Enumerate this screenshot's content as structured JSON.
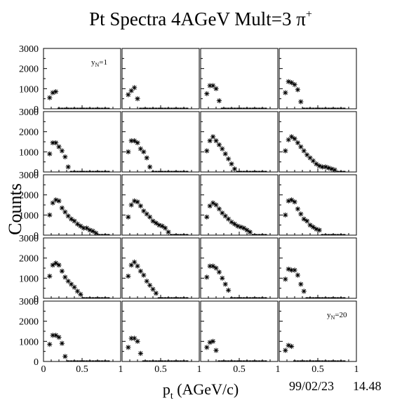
{
  "title": "Pt Spectra 4AGeV Mult=3 π",
  "title_sup": "+",
  "footer": {
    "date": "99/02/23",
    "time": "14.48"
  },
  "colors": {
    "background": "#ffffff",
    "ink": "#000000"
  },
  "chart_data": {
    "type": "scatter",
    "marker": "asterisk",
    "layout": "grid 5 rows x 4 columns",
    "ylabel": "Counts",
    "xlabel_main": "p",
    "xlabel_sub": "t",
    "xlabel_unit": " (AGeV/c)",
    "xlim": [
      0,
      1
    ],
    "ylim": [
      0,
      3000
    ],
    "y_ticks": [
      "0",
      "1000",
      "2000",
      "3000"
    ],
    "x_ticks_first": [
      "0",
      "0.5",
      "1"
    ],
    "x_ticks_other": [
      "0.5",
      "1"
    ],
    "panel_labels": [
      {
        "panel": 0,
        "main": "y",
        "sub": "N",
        "value": "=1"
      },
      {
        "panel": 19,
        "main": "y",
        "sub": "N",
        "value": "=20"
      }
    ],
    "panels": [
      [
        [
          0.08,
          550
        ],
        [
          0.12,
          800
        ],
        [
          0.16,
          850
        ]
      ],
      [
        [
          0.08,
          700
        ],
        [
          0.12,
          900
        ],
        [
          0.16,
          1050
        ],
        [
          0.2,
          500
        ]
      ],
      [
        [
          0.08,
          750
        ],
        [
          0.12,
          1150
        ],
        [
          0.16,
          1150
        ],
        [
          0.2,
          1000
        ],
        [
          0.24,
          400
        ]
      ],
      [
        [
          0.08,
          800
        ],
        [
          0.12,
          1350
        ],
        [
          0.16,
          1300
        ],
        [
          0.2,
          1200
        ],
        [
          0.24,
          950
        ],
        [
          0.28,
          350
        ]
      ],
      [
        [
          0.08,
          900
        ],
        [
          0.12,
          1450
        ],
        [
          0.16,
          1450
        ],
        [
          0.2,
          1250
        ],
        [
          0.24,
          1050
        ],
        [
          0.28,
          750
        ],
        [
          0.32,
          250
        ]
      ],
      [
        [
          0.08,
          1000
        ],
        [
          0.12,
          1550
        ],
        [
          0.16,
          1550
        ],
        [
          0.2,
          1450
        ],
        [
          0.24,
          1150
        ],
        [
          0.28,
          1000
        ],
        [
          0.32,
          700
        ],
        [
          0.36,
          250
        ]
      ],
      [
        [
          0.08,
          1050
        ],
        [
          0.12,
          1550
        ],
        [
          0.16,
          1750
        ],
        [
          0.2,
          1550
        ],
        [
          0.24,
          1350
        ],
        [
          0.28,
          1150
        ],
        [
          0.32,
          900
        ],
        [
          0.36,
          650
        ],
        [
          0.4,
          400
        ],
        [
          0.44,
          150
        ]
      ],
      [
        [
          0.08,
          1050
        ],
        [
          0.12,
          1600
        ],
        [
          0.16,
          1750
        ],
        [
          0.2,
          1650
        ],
        [
          0.24,
          1450
        ],
        [
          0.28,
          1250
        ],
        [
          0.32,
          1050
        ],
        [
          0.36,
          850
        ],
        [
          0.4,
          700
        ],
        [
          0.44,
          550
        ],
        [
          0.48,
          400
        ],
        [
          0.52,
          300
        ],
        [
          0.56,
          250
        ],
        [
          0.6,
          250
        ],
        [
          0.64,
          200
        ],
        [
          0.68,
          150
        ],
        [
          0.72,
          100
        ]
      ],
      [
        [
          0.08,
          1000
        ],
        [
          0.12,
          1600
        ],
        [
          0.16,
          1750
        ],
        [
          0.2,
          1700
        ],
        [
          0.24,
          1350
        ],
        [
          0.28,
          1150
        ],
        [
          0.32,
          950
        ],
        [
          0.36,
          800
        ],
        [
          0.4,
          700
        ],
        [
          0.44,
          550
        ],
        [
          0.48,
          450
        ],
        [
          0.52,
          350
        ],
        [
          0.56,
          350
        ],
        [
          0.6,
          250
        ],
        [
          0.64,
          200
        ],
        [
          0.68,
          100
        ]
      ],
      [
        [
          0.08,
          900
        ],
        [
          0.12,
          1500
        ],
        [
          0.16,
          1700
        ],
        [
          0.2,
          1650
        ],
        [
          0.24,
          1450
        ],
        [
          0.28,
          1200
        ],
        [
          0.32,
          1050
        ],
        [
          0.36,
          900
        ],
        [
          0.4,
          700
        ],
        [
          0.44,
          600
        ],
        [
          0.48,
          500
        ],
        [
          0.52,
          450
        ],
        [
          0.56,
          350
        ],
        [
          0.6,
          150
        ]
      ],
      [
        [
          0.08,
          900
        ],
        [
          0.12,
          1450
        ],
        [
          0.16,
          1600
        ],
        [
          0.2,
          1500
        ],
        [
          0.24,
          1300
        ],
        [
          0.28,
          1100
        ],
        [
          0.32,
          950
        ],
        [
          0.36,
          800
        ],
        [
          0.4,
          650
        ],
        [
          0.44,
          550
        ],
        [
          0.48,
          450
        ],
        [
          0.52,
          400
        ],
        [
          0.56,
          350
        ],
        [
          0.6,
          250
        ],
        [
          0.64,
          150
        ]
      ],
      [
        [
          0.08,
          1000
        ],
        [
          0.12,
          1700
        ],
        [
          0.16,
          1750
        ],
        [
          0.2,
          1650
        ],
        [
          0.24,
          1300
        ],
        [
          0.28,
          1050
        ],
        [
          0.32,
          800
        ],
        [
          0.36,
          700
        ],
        [
          0.4,
          500
        ],
        [
          0.44,
          400
        ],
        [
          0.48,
          300
        ],
        [
          0.52,
          250
        ]
      ],
      [
        [
          0.08,
          1100
        ],
        [
          0.12,
          1650
        ],
        [
          0.16,
          1750
        ],
        [
          0.2,
          1650
        ],
        [
          0.24,
          1350
        ],
        [
          0.28,
          1050
        ],
        [
          0.32,
          850
        ],
        [
          0.36,
          700
        ],
        [
          0.4,
          550
        ],
        [
          0.44,
          350
        ],
        [
          0.48,
          200
        ]
      ],
      [
        [
          0.08,
          1100
        ],
        [
          0.12,
          1650
        ],
        [
          0.16,
          1800
        ],
        [
          0.2,
          1600
        ],
        [
          0.24,
          1350
        ],
        [
          0.28,
          1150
        ],
        [
          0.32,
          850
        ],
        [
          0.36,
          650
        ],
        [
          0.4,
          450
        ],
        [
          0.44,
          250
        ]
      ],
      [
        [
          0.08,
          1050
        ],
        [
          0.12,
          1600
        ],
        [
          0.16,
          1600
        ],
        [
          0.2,
          1500
        ],
        [
          0.24,
          1300
        ],
        [
          0.28,
          1000
        ],
        [
          0.32,
          700
        ],
        [
          0.36,
          400
        ]
      ],
      [
        [
          0.08,
          950
        ],
        [
          0.12,
          1450
        ],
        [
          0.16,
          1400
        ],
        [
          0.2,
          1400
        ],
        [
          0.24,
          1150
        ],
        [
          0.28,
          700
        ],
        [
          0.32,
          350
        ]
      ],
      [
        [
          0.08,
          850
        ],
        [
          0.12,
          1300
        ],
        [
          0.16,
          1300
        ],
        [
          0.2,
          1200
        ],
        [
          0.24,
          900
        ],
        [
          0.28,
          250
        ]
      ],
      [
        [
          0.08,
          700
        ],
        [
          0.12,
          1150
        ],
        [
          0.16,
          1150
        ],
        [
          0.2,
          1000
        ],
        [
          0.24,
          400
        ]
      ],
      [
        [
          0.08,
          700
        ],
        [
          0.12,
          950
        ],
        [
          0.16,
          1000
        ],
        [
          0.2,
          550
        ]
      ],
      [
        [
          0.08,
          550
        ],
        [
          0.12,
          800
        ],
        [
          0.16,
          750
        ]
      ]
    ]
  }
}
